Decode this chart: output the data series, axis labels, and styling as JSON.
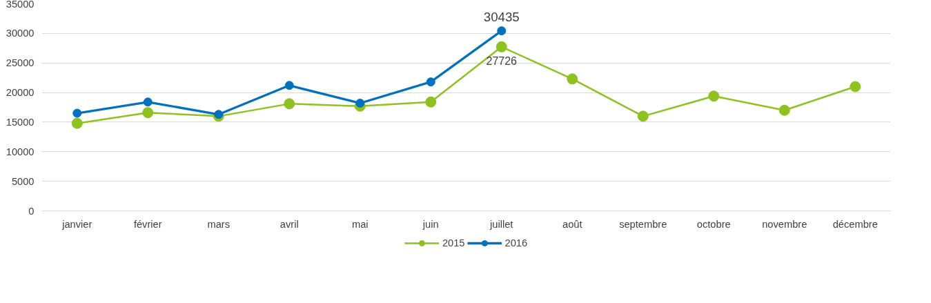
{
  "chart_data": {
    "type": "line",
    "categories": [
      "janvier",
      "février",
      "mars",
      "avril",
      "mai",
      "juin",
      "juillet",
      "août",
      "septembre",
      "octobre",
      "novembre",
      "décembre"
    ],
    "series": [
      {
        "name": "2015",
        "color": "#8dc21f",
        "values": [
          14800,
          16600,
          16000,
          18100,
          17700,
          18400,
          27726,
          22300,
          16000,
          19400,
          17000,
          21000
        ],
        "value_labels": [
          null,
          null,
          null,
          null,
          null,
          null,
          "27726",
          null,
          null,
          null,
          null,
          null
        ]
      },
      {
        "name": "2016",
        "color": "#0070c0",
        "values": [
          16500,
          18400,
          16300,
          21200,
          18200,
          21800,
          30435,
          null,
          null,
          null,
          null,
          null
        ],
        "value_labels": [
          null,
          null,
          null,
          null,
          null,
          null,
          "30435",
          null,
          null,
          null,
          null,
          null
        ]
      }
    ],
    "ylim": [
      0,
      35000
    ],
    "yticks": [
      0,
      5000,
      10000,
      15000,
      20000,
      25000,
      30000,
      35000
    ],
    "grid": "y",
    "legend": "bottom",
    "marker": "circle",
    "line_style": "solid"
  }
}
